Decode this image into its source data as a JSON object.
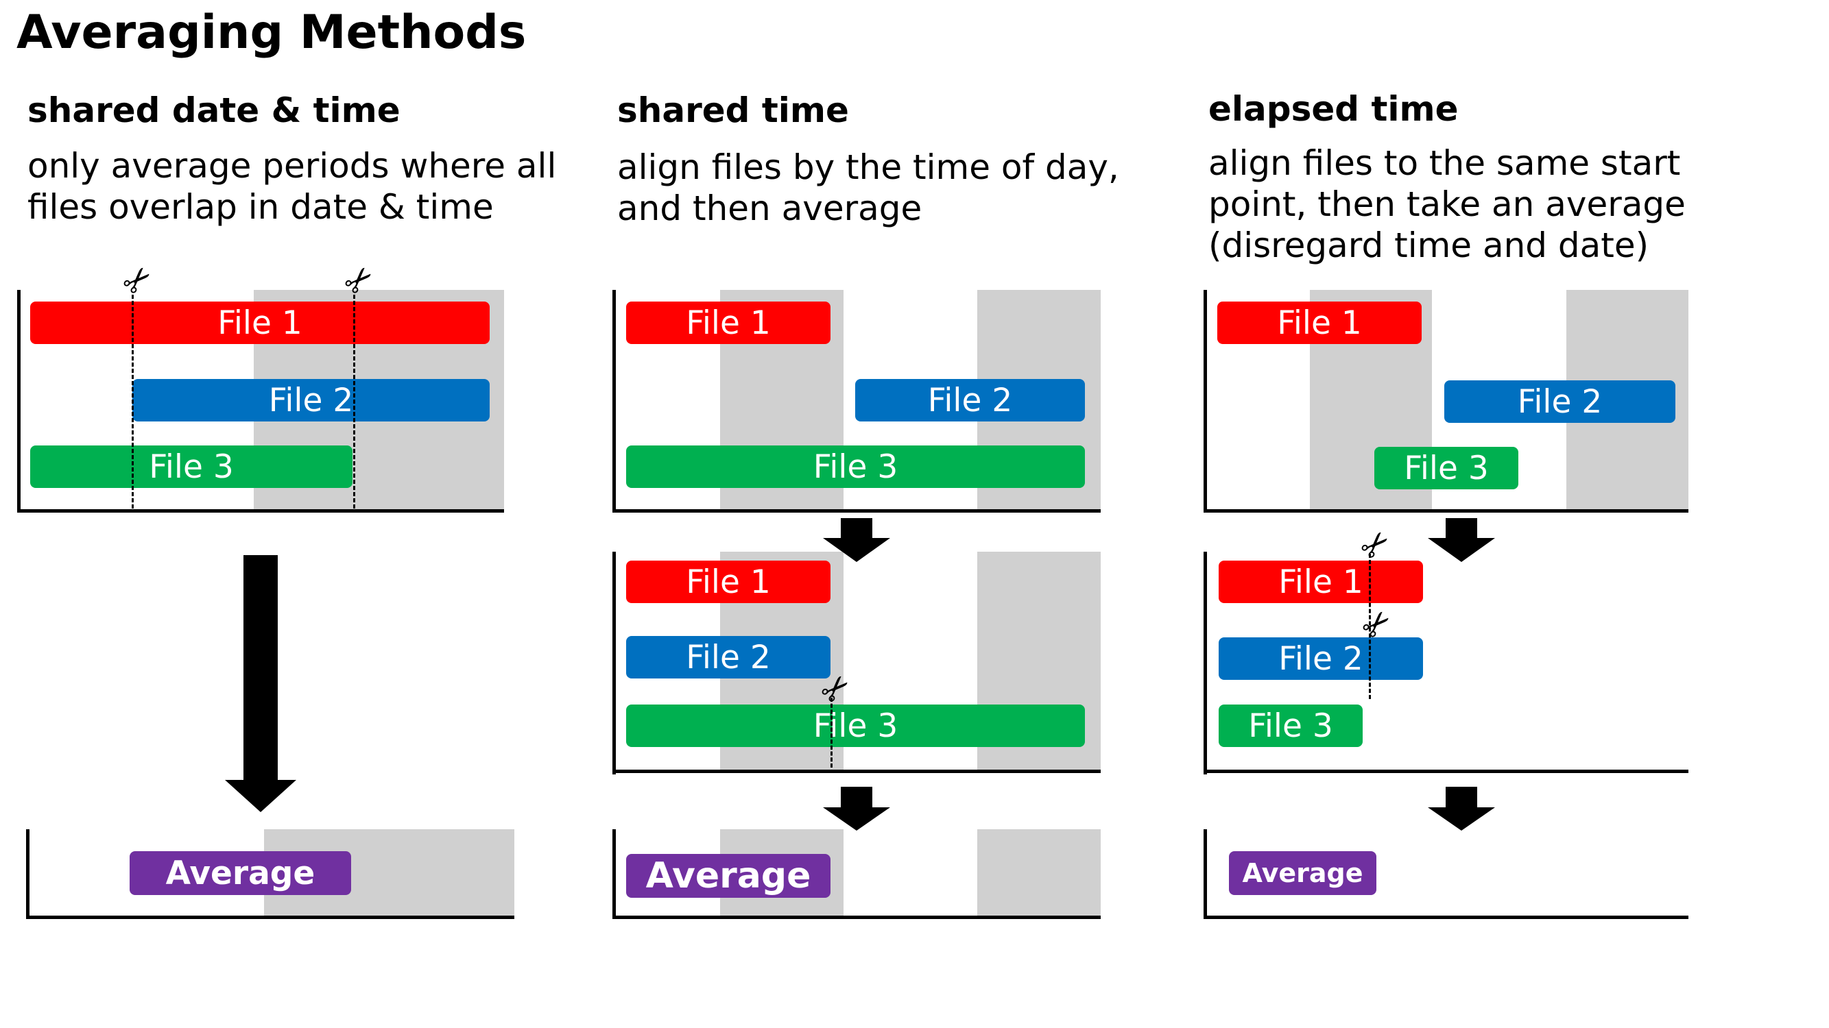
{
  "title": "Averaging Methods",
  "columns": [
    {
      "heading": "shared date & time",
      "description": [
        "only average periods where all",
        "files overlap in date & time"
      ],
      "files": [
        "File 1",
        "File 2",
        "File 3"
      ],
      "result": "Average"
    },
    {
      "heading": "shared time",
      "description": [
        "align files by the time of day,",
        "and then average"
      ],
      "files": [
        "File 1",
        "File 2",
        "File 3"
      ],
      "aligned_files": [
        "File 1",
        "File 2",
        "File 3"
      ],
      "result": "Average"
    },
    {
      "heading": "elapsed time",
      "description": [
        "align files to the same start",
        "point, then take an average",
        "(disregard time and date)"
      ],
      "files": [
        "File 1",
        "File 2",
        "File 3"
      ],
      "aligned_files": [
        "File 1",
        "File 2",
        "File 3"
      ],
      "result": "Average"
    }
  ],
  "icons": {
    "scissors": "scissors-icon",
    "arrow": "down-arrow-icon"
  },
  "colors": {
    "file1": "#ff0000",
    "file2": "#0070c0",
    "file3": "#00b050",
    "average": "#7030a0",
    "night_shading": "#d0d0d0"
  }
}
